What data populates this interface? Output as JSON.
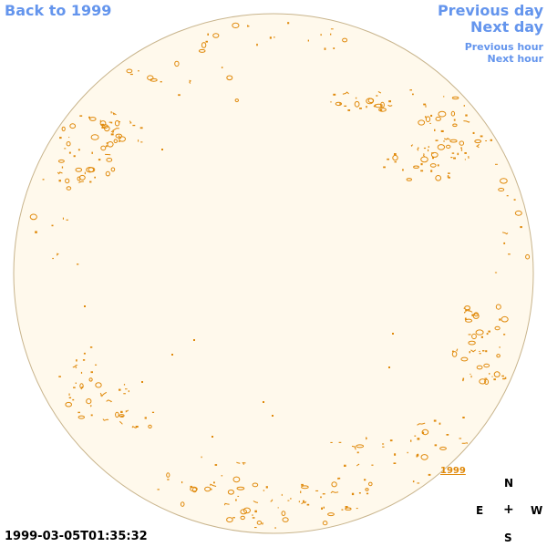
{
  "nav": {
    "back": "Back to 1999",
    "previous_day": "Previous day",
    "next_day": "Next day",
    "previous_hour": "Previous hour",
    "next_hour": "Next hour"
  },
  "year_tag": "1999",
  "timestamp": "1999-03-05T01:35:32",
  "compass": {
    "north": "N",
    "east": "E",
    "center": "+",
    "west": "W",
    "south": "S"
  },
  "colors": {
    "disk_fill": "#fff9ec",
    "disk_border": "#c8b48c",
    "feature": "#e08a0c",
    "link": "#6495ed"
  },
  "icons": {
    "compass_center": "plus-icon"
  }
}
